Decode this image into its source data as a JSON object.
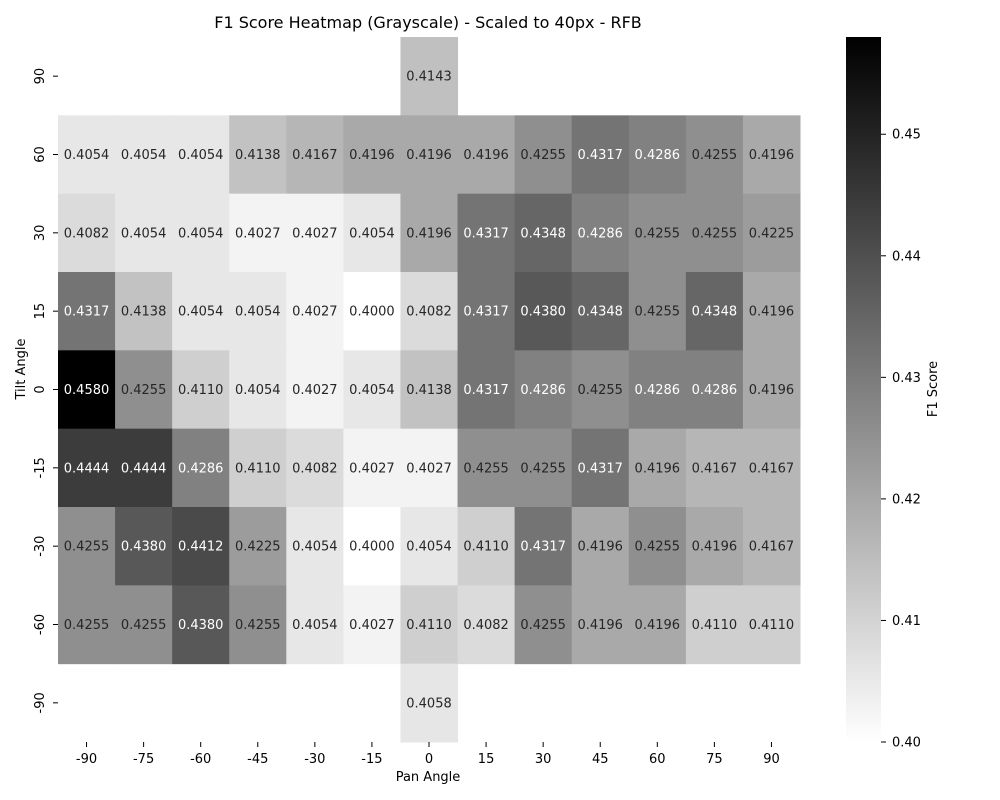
{
  "chart_data": {
    "type": "heatmap",
    "title": "F1 Score Heatmap (Grayscale) - Scaled to 40px - RFB",
    "xlabel": "Pan Angle",
    "ylabel": "Tilt Angle",
    "colorbar_label": "F1 Score",
    "colormap": "Greys (white = low, black = high)",
    "vmin": 0.4,
    "vmax": 0.458,
    "colorbar_ticks": [
      "0.40",
      "0.41",
      "0.42",
      "0.43",
      "0.44",
      "0.45"
    ],
    "x_categories": [
      "-90",
      "-75",
      "-60",
      "-45",
      "-30",
      "-15",
      "0",
      "15",
      "30",
      "45",
      "60",
      "75",
      "90"
    ],
    "y_categories": [
      "90",
      "60",
      "30",
      "15",
      "0",
      "-15",
      "-30",
      "-60",
      "-90"
    ],
    "values": [
      [
        null,
        null,
        null,
        null,
        null,
        null,
        0.4143,
        null,
        null,
        null,
        null,
        null,
        null
      ],
      [
        0.4054,
        0.4054,
        0.4054,
        0.4138,
        0.4167,
        0.4196,
        0.4196,
        0.4196,
        0.4255,
        0.4317,
        0.4286,
        0.4255,
        0.4196
      ],
      [
        0.4082,
        0.4054,
        0.4054,
        0.4027,
        0.4027,
        0.4054,
        0.4196,
        0.4317,
        0.4348,
        0.4286,
        0.4255,
        0.4255,
        0.4225
      ],
      [
        0.4317,
        0.4138,
        0.4054,
        0.4054,
        0.4027,
        0.4,
        0.4082,
        0.4317,
        0.438,
        0.4348,
        0.4255,
        0.4348,
        0.4196
      ],
      [
        0.458,
        0.4255,
        0.411,
        0.4054,
        0.4027,
        0.4054,
        0.4138,
        0.4317,
        0.4286,
        0.4255,
        0.4286,
        0.4286,
        0.4196
      ],
      [
        0.4444,
        0.4444,
        0.4286,
        0.411,
        0.4082,
        0.4027,
        0.4027,
        0.4255,
        0.4255,
        0.4317,
        0.4196,
        0.4167,
        0.4167
      ],
      [
        0.4255,
        0.438,
        0.4412,
        0.4225,
        0.4054,
        0.4,
        0.4054,
        0.411,
        0.4317,
        0.4196,
        0.4255,
        0.4196,
        0.4167
      ],
      [
        0.4255,
        0.4255,
        0.438,
        0.4255,
        0.4054,
        0.4027,
        0.411,
        0.4082,
        0.4255,
        0.4196,
        0.4196,
        0.411,
        0.411
      ],
      [
        null,
        null,
        null,
        null,
        null,
        null,
        0.4058,
        null,
        null,
        null,
        null,
        null,
        null
      ]
    ]
  }
}
